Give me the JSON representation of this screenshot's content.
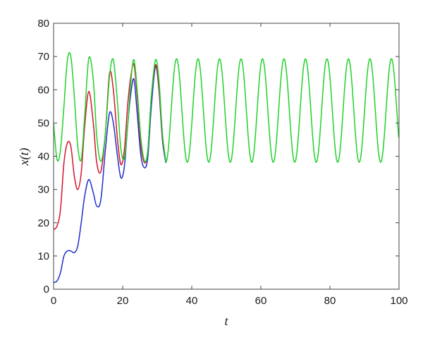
{
  "chart_data": {
    "type": "line",
    "title": "",
    "xlabel": "t",
    "ylabel": "x(t)",
    "xlim": [
      0,
      100
    ],
    "ylim": [
      0,
      80
    ],
    "x_ticks": [
      0,
      20,
      40,
      60,
      80,
      100
    ],
    "y_ticks": [
      0,
      10,
      20,
      30,
      40,
      50,
      60,
      70,
      80
    ],
    "x_tick_labels": [
      "0",
      "20",
      "40",
      "60",
      "80",
      "100"
    ],
    "y_tick_labels": [
      "0",
      "10",
      "20",
      "30",
      "40",
      "50",
      "60",
      "70",
      "80"
    ],
    "grid": false,
    "legend": "none",
    "series": [
      {
        "color": "#1f2fcc",
        "x": [
          0,
          1,
          2,
          3,
          4,
          5,
          6,
          7,
          8,
          9,
          10.2,
          11.5,
          12.5,
          13.7,
          15,
          16.2,
          17.3,
          18.5,
          19.5,
          20.5,
          21.5,
          22.5,
          23.3,
          24.2,
          25.3,
          26.4,
          27.3,
          28.3,
          29.5,
          30.5,
          31.5,
          32.5
        ],
        "y": [
          2,
          2.5,
          5,
          10,
          11.5,
          11.5,
          11,
          13,
          20,
          28,
          33,
          29,
          25,
          27,
          42,
          53,
          50,
          40,
          33.5,
          37,
          50,
          60,
          63,
          53,
          40,
          36.5,
          40,
          55,
          67,
          60,
          45,
          38
        ]
      },
      {
        "color": "#d6142a",
        "x": [
          0,
          1,
          2,
          3,
          4,
          5,
          6,
          7,
          8,
          9,
          10.2,
          11.5,
          12.5,
          13.7,
          15,
          16.2,
          17.3,
          18.5,
          19.5,
          20.5,
          21.5,
          22.5,
          23.3,
          24.2,
          25.3,
          26.4,
          27.3,
          28.3,
          29.5,
          30.5,
          31.5,
          32.5
        ],
        "y": [
          18,
          19,
          24,
          38,
          44,
          43,
          34,
          30,
          35,
          49,
          59.5,
          50,
          38,
          35.5,
          47,
          65,
          60,
          45,
          37.5,
          42,
          56,
          65,
          67.5,
          58,
          43,
          38,
          42,
          58,
          67.5,
          61,
          46,
          38.5
        ]
      },
      {
        "color": "#1fd22a",
        "x": [
          0,
          1,
          2,
          3,
          4,
          5,
          6,
          7,
          8,
          9,
          10.2,
          11.5,
          12.5,
          13.7,
          15,
          16.2,
          17.3,
          18.5,
          19.5,
          20.5,
          21.5,
          22.5,
          23.3,
          24.2,
          25.3,
          26.4,
          27.3,
          28.3,
          29.5,
          30.5,
          31.5,
          32.5
        ],
        "y": [
          50,
          39,
          42,
          55,
          69,
          70,
          58,
          43,
          39,
          52,
          69.5,
          63,
          46,
          38.5,
          47,
          64,
          69,
          56,
          42,
          39.5,
          50,
          64,
          69,
          60,
          45,
          38.5,
          42,
          58,
          69,
          63,
          47,
          38.5
        ]
      }
    ],
    "steady_state": {
      "x_start": 32.5,
      "x_end": 100,
      "period": 6.22,
      "first_peak_t": 35.6,
      "min": 38.2,
      "max": 69.3,
      "color": "#1fd22a"
    }
  }
}
